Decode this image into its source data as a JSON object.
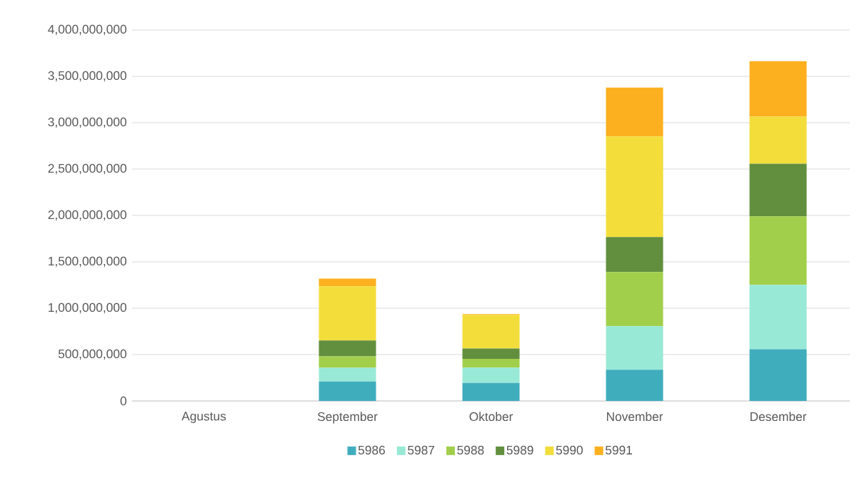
{
  "chart_data": {
    "type": "bar",
    "stacked": true,
    "categories": [
      "Agustus",
      "September",
      "Oktober",
      "November",
      "Desember"
    ],
    "series": [
      {
        "name": "5986",
        "color": "#40adbd",
        "values": [
          null,
          210000000,
          195000000,
          337000000,
          558000000
        ]
      },
      {
        "name": "5987",
        "color": "#98e9d6",
        "values": [
          null,
          148000000,
          164000000,
          469000000,
          694000000
        ]
      },
      {
        "name": "5988",
        "color": "#a2cf4b",
        "values": [
          null,
          123000000,
          95000000,
          585000000,
          739000000
        ]
      },
      {
        "name": "5989",
        "color": "#628f3e",
        "values": [
          null,
          170000000,
          111000000,
          377000000,
          567000000
        ]
      },
      {
        "name": "5990",
        "color": "#f3dd3a",
        "values": [
          null,
          586000000,
          363000000,
          1084000000,
          507000000
        ]
      },
      {
        "name": "5991",
        "color": "#fdb01f",
        "values": [
          null,
          83000000,
          8000000,
          526000000,
          598000000
        ]
      }
    ],
    "ylim": [
      0,
      4000000000
    ],
    "yticks": [
      0,
      {
        "value": 500000000,
        "label": "500,000,000"
      },
      {
        "value": 1000000000,
        "label": "1,000,000,000"
      },
      {
        "value": 1500000000,
        "label": "1,500,000,000"
      },
      {
        "value": 2000000000,
        "label": "2,000,000,000"
      },
      {
        "value": 2500000000,
        "label": "2,500,000,000"
      },
      {
        "value": 3000000000,
        "label": "3,000,000,000"
      },
      {
        "value": 3500000000,
        "label": "3,500,000,000"
      },
      {
        "value": 4000000000,
        "label": "4,000,000,000"
      }
    ],
    "grid": "y",
    "legend": "bottom"
  }
}
